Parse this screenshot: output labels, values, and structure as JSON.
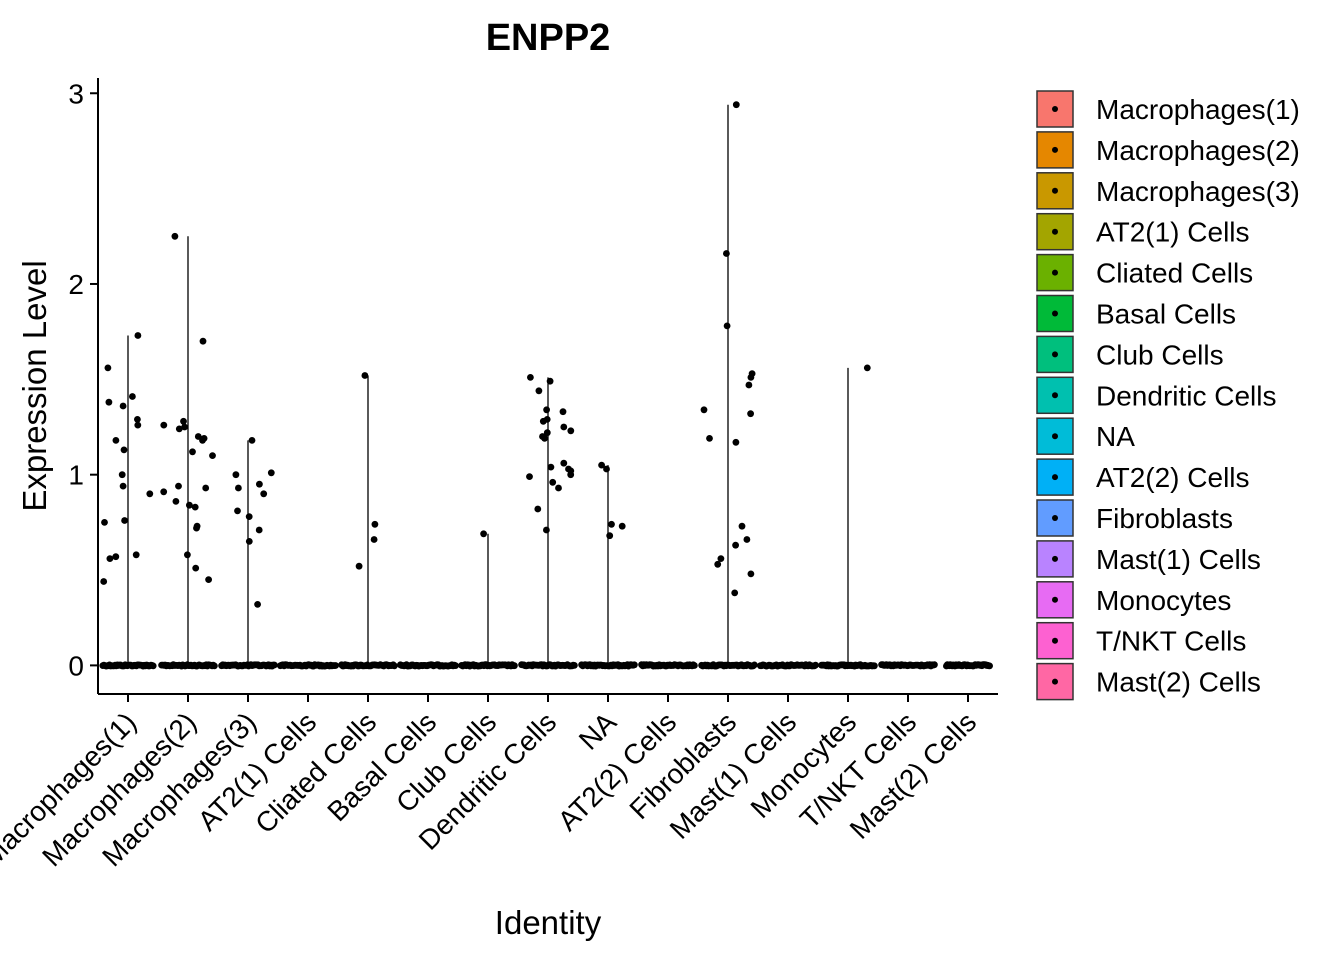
{
  "chart_data": {
    "type": "violin",
    "title": "ENPP2",
    "xlabel": "Identity",
    "ylabel": "Expression Level",
    "ylim": [
      -0.15,
      3.08
    ],
    "yticks": [
      0,
      1,
      2,
      3
    ],
    "categories": [
      "Macrophages(1)",
      "Macrophages(2)",
      "Macrophages(3)",
      "AT2(1) Cells",
      "Cliated Cells",
      "Basal Cells",
      "Club Cells",
      "Dendritic Cells",
      "NA",
      "AT2(2) Cells",
      "Fibroblasts",
      "Mast(1) Cells",
      "Monocytes",
      "T/NKT Cells",
      "Mast(2) Cells"
    ],
    "colors": [
      "#F8766D",
      "#E58700",
      "#C99800",
      "#A3A500",
      "#6BB100",
      "#00BA38",
      "#00BF7D",
      "#00C0AF",
      "#00BCD8",
      "#00B0F6",
      "#619CFF",
      "#B983FF",
      "#E76BF3",
      "#FD61D1",
      "#FF67A4"
    ],
    "legend_position": "right",
    "grid": false,
    "violin_max": [
      1.73,
      2.25,
      1.18,
      0,
      1.52,
      0,
      0.69,
      1.51,
      1.05,
      0,
      2.94,
      0,
      1.56,
      0,
      0
    ],
    "nonzero_points": [
      [
        1.73,
        1.38,
        1.41,
        1.56,
        1.29,
        1.36,
        1.26,
        1.18,
        1.0,
        0.94,
        1.13,
        0.9,
        0.76,
        0.75,
        0.57,
        0.56,
        0.58,
        0.44
      ],
      [
        2.25,
        1.7,
        1.28,
        1.25,
        1.26,
        1.24,
        1.2,
        1.19,
        1.18,
        1.1,
        1.12,
        0.93,
        0.94,
        0.91,
        0.86,
        0.84,
        0.83,
        0.73,
        0.72,
        0.58,
        0.51,
        0.45
      ],
      [
        1.18,
        1.01,
        1.0,
        0.95,
        0.93,
        0.9,
        0.81,
        0.78,
        0.71,
        0.65,
        0.32
      ],
      [],
      [
        1.52,
        0.74,
        0.66,
        0.52
      ],
      [],
      [
        0.69
      ],
      [
        1.51,
        1.49,
        1.44,
        1.34,
        1.33,
        1.29,
        1.28,
        1.25,
        1.23,
        1.22,
        1.2,
        1.19,
        1.06,
        1.04,
        1.03,
        1.02,
        1.0,
        0.99,
        0.96,
        0.93,
        0.82,
        0.71
      ],
      [
        1.05,
        1.03,
        0.74,
        0.73,
        0.68
      ],
      [],
      [
        2.94,
        2.16,
        1.78,
        1.53,
        1.51,
        1.47,
        1.34,
        1.32,
        1.19,
        1.17,
        0.73,
        0.66,
        0.63,
        0.56,
        0.53,
        0.48,
        0.38
      ],
      [],
      [
        1.56
      ],
      [],
      []
    ],
    "zero_band_halfwidth": [
      0.42,
      0.44,
      0.44,
      0.46,
      0.44,
      0.46,
      0.44,
      0.44,
      0.44,
      0.44,
      0.44,
      0.46,
      0.44,
      0.44,
      0.36
    ]
  }
}
